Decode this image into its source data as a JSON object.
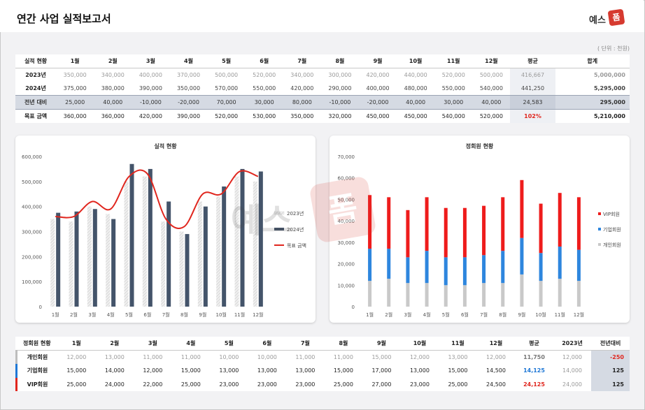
{
  "header": {
    "title": "연간 사업 실적보고서",
    "logo_text": "예스",
    "logo_mark": "폼"
  },
  "unit_label": "( 단위 : 천원)",
  "perf_table": {
    "headers": [
      "실적 현황",
      "1월",
      "2월",
      "3월",
      "4월",
      "5월",
      "6월",
      "7월",
      "8월",
      "9월",
      "10월",
      "11월",
      "12월",
      "평균",
      "합계"
    ],
    "rows": [
      {
        "label": "2023년",
        "cells": [
          "350,000",
          "340,000",
          "400,000",
          "370,000",
          "500,000",
          "520,000",
          "340,000",
          "300,000",
          "420,000",
          "440,000",
          "520,000",
          "500,000"
        ],
        "avg": "416,667",
        "total": "5,000,000"
      },
      {
        "label": "2024년",
        "cells": [
          "375,000",
          "380,000",
          "390,000",
          "350,000",
          "570,000",
          "550,000",
          "420,000",
          "290,000",
          "400,000",
          "480,000",
          "550,000",
          "540,000"
        ],
        "avg": "441,250",
        "total": "5,295,000"
      },
      {
        "label": "전년 대비",
        "cells": [
          "25,000",
          "40,000",
          "-10,000",
          "-20,000",
          "70,000",
          "30,000",
          "80,000",
          "-10,000",
          "-20,000",
          "40,000",
          "30,000",
          "40,000"
        ],
        "avg": "24,583",
        "total": "295,000"
      },
      {
        "label": "목표 금액",
        "cells": [
          "360,000",
          "360,000",
          "420,000",
          "390,000",
          "520,000",
          "530,000",
          "350,000",
          "320,000",
          "450,000",
          "450,000",
          "540,000",
          "520,000"
        ],
        "avg": "102%",
        "total": "5,210,000"
      }
    ]
  },
  "chart_data": [
    {
      "type": "bar",
      "title": "실적 현황",
      "categories": [
        "1월",
        "2월",
        "3월",
        "4월",
        "5월",
        "6월",
        "7월",
        "8월",
        "9월",
        "10월",
        "11월",
        "12월"
      ],
      "series": [
        {
          "name": "2023년",
          "values": [
            350000,
            340000,
            400000,
            370000,
            500000,
            520000,
            340000,
            300000,
            420000,
            440000,
            520000,
            500000
          ]
        },
        {
          "name": "2024년",
          "values": [
            375000,
            380000,
            390000,
            350000,
            570000,
            550000,
            420000,
            290000,
            400000,
            480000,
            550000,
            540000
          ]
        },
        {
          "name": "목표 금액",
          "type": "line",
          "values": [
            360000,
            360000,
            420000,
            390000,
            520000,
            530000,
            350000,
            320000,
            450000,
            450000,
            540000,
            520000
          ]
        }
      ],
      "ylim": [
        0,
        600000
      ],
      "yticks": [
        "0",
        "100,000",
        "200,000",
        "300,000",
        "400,000",
        "500,000",
        "600,000"
      ],
      "legend": "right",
      "colors": {
        "2023년": "#d9d9d9",
        "2024년": "#44546a",
        "목표 금액": "#e0261e"
      }
    },
    {
      "type": "bar",
      "stacked": true,
      "title": "정회원 현황",
      "categories": [
        "1월",
        "2월",
        "3월",
        "4월",
        "5월",
        "6월",
        "7월",
        "8월",
        "9월",
        "10월",
        "11월",
        "12월"
      ],
      "series": [
        {
          "name": "개인회원",
          "values": [
            12000,
            13000,
            11000,
            11000,
            10000,
            10000,
            11000,
            11000,
            15000,
            12000,
            13000,
            12000
          ]
        },
        {
          "name": "기업회원",
          "values": [
            15000,
            14000,
            12000,
            15000,
            13000,
            13000,
            13000,
            15000,
            17000,
            13000,
            15000,
            14500
          ]
        },
        {
          "name": "VIP회원",
          "values": [
            25000,
            24000,
            22000,
            25000,
            23000,
            23000,
            23000,
            25000,
            27000,
            23000,
            25000,
            24500
          ]
        }
      ],
      "ylim": [
        0,
        70000
      ],
      "yticks": [
        "0",
        "10,000",
        "20,000",
        "30,000",
        "40,000",
        "50,000",
        "60,000",
        "70,000"
      ],
      "legend": "right",
      "colors": {
        "개인회원": "#c9c9c9",
        "기업회원": "#2e86de",
        "VIP회원": "#ee1c1c"
      }
    }
  ],
  "member_table": {
    "headers": [
      "정회원 현황",
      "1월",
      "2월",
      "3월",
      "4월",
      "5월",
      "6월",
      "7월",
      "8월",
      "9월",
      "10월",
      "11월",
      "12월",
      "평균",
      "2023년",
      "전년대비"
    ],
    "rows": [
      {
        "label": "개인회원",
        "cells": [
          "12,000",
          "13,000",
          "11,000",
          "11,000",
          "10,000",
          "10,000",
          "11,000",
          "11,000",
          "15,000",
          "12,000",
          "13,000",
          "12,000"
        ],
        "avg": "11,750",
        "prev": "12,000",
        "yoy": "-250"
      },
      {
        "label": "기업회원",
        "cells": [
          "15,000",
          "14,000",
          "12,000",
          "15,000",
          "13,000",
          "13,000",
          "13,000",
          "15,000",
          "17,000",
          "13,000",
          "15,000",
          "14,500"
        ],
        "avg": "14,125",
        "prev": "14,000",
        "yoy": "125"
      },
      {
        "label": "VIP회원",
        "cells": [
          "25,000",
          "24,000",
          "22,000",
          "25,000",
          "23,000",
          "23,000",
          "23,000",
          "25,000",
          "27,000",
          "23,000",
          "25,000",
          "24,500"
        ],
        "avg": "24,125",
        "prev": "24,000",
        "yoy": "125"
      }
    ]
  }
}
